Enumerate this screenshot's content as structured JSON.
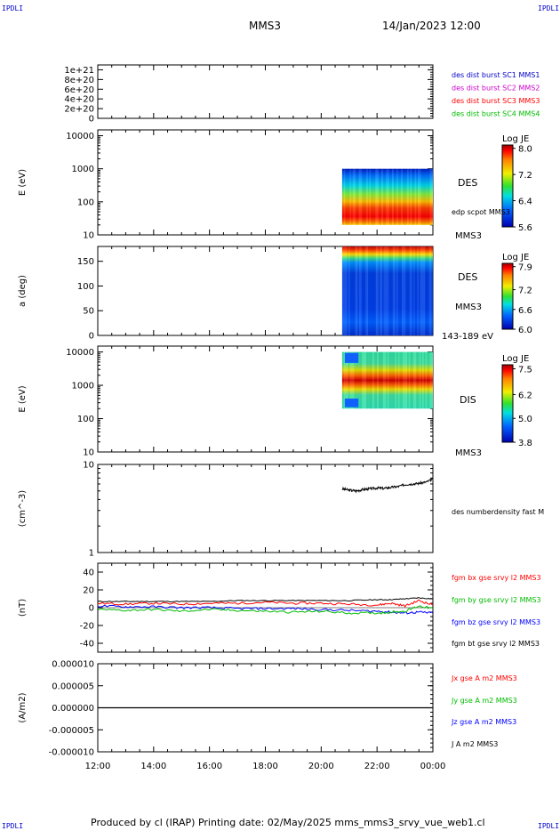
{
  "corners": {
    "tl": "IPDLI",
    "tr": "IPDLI",
    "bl": "IPDLI",
    "br": "IPDLI"
  },
  "header": {
    "spacecraft": "MMS3",
    "date": "14/Jan/2023 12:00"
  },
  "footer": {
    "text": "Produced by cl (IRAP)   Printing date: 02/May/2025   mms_mms3_srvy_vue_web1.cl"
  },
  "colors": {
    "mms1": "#0000cc",
    "mms2": "#cc00cc",
    "mms3": "#ff0000",
    "mms4": "#00bb00",
    "red": "#ff0000",
    "green": "#00bb00",
    "blue": "#0000ff",
    "black": "#000000"
  },
  "chart_data": [
    {
      "type": "line",
      "panel": "dist",
      "ylabel": "",
      "yticks": [
        "1e+21",
        "8e+20",
        "6e+20",
        "4e+20",
        "2e+20",
        "0"
      ],
      "ylim": [
        0,
        1.1e+21
      ],
      "xlim": [
        12,
        24
      ],
      "xticks": [
        "12:00",
        "14:00",
        "16:00",
        "18:00",
        "20:00",
        "22:00",
        "00:00"
      ],
      "series": [
        {
          "name": "des dist burst SC1 MMS1",
          "values": [
            0,
            0
          ]
        },
        {
          "name": "des dist burst SC2 MMS2",
          "values": [
            0,
            0
          ]
        },
        {
          "name": "des dist burst SC3 MMS3",
          "values": [
            0,
            0
          ]
        },
        {
          "name": "des dist burst SC4 MMS4",
          "values": [
            0,
            0
          ]
        }
      ]
    },
    {
      "type": "heatmap",
      "panel": "des_energy",
      "ylabel": "E (eV)",
      "yscale": "log",
      "ylim": [
        10,
        15000
      ],
      "yticks": [
        "10",
        "100",
        "1000",
        "10000"
      ],
      "data_x_range": [
        20.75,
        24
      ],
      "data_y_range": [
        20,
        1000
      ],
      "label": "DES",
      "overlay": "edp scpot MMS3",
      "sc_label": "MMS3",
      "colorbar": {
        "title": "Log JE",
        "ticks": [
          "8.0",
          "7.2",
          "6.4",
          "5.6"
        ],
        "range": [
          5.6,
          8.1
        ]
      }
    },
    {
      "type": "heatmap",
      "panel": "des_pitch",
      "ylabel": "a (deg)",
      "ylim": [
        0,
        180
      ],
      "yticks": [
        "0",
        "50",
        "100",
        "150"
      ],
      "data_x_range": [
        20.75,
        24
      ],
      "label": "DES",
      "sc_label": "MMS3",
      "energy_range": "143-189 eV",
      "colorbar": {
        "title": "Log JE",
        "ticks": [
          "7.9",
          "7.2",
          "6.6",
          "6.0"
        ],
        "range": [
          6.0,
          8.0
        ]
      }
    },
    {
      "type": "heatmap",
      "panel": "dis_energy",
      "ylabel": "E (eV)",
      "yscale": "log",
      "ylim": [
        10,
        15000
      ],
      "yticks": [
        "10",
        "100",
        "1000",
        "10000"
      ],
      "data_x_range": [
        20.75,
        24
      ],
      "data_y_range": [
        200,
        10000
      ],
      "label": "DIS",
      "sc_label": "MMS3",
      "colorbar": {
        "title": "Log JE",
        "ticks": [
          "7.5",
          "6.2",
          "5.0",
          "3.8"
        ],
        "range": [
          3.8,
          7.7
        ]
      }
    },
    {
      "type": "line",
      "panel": "density",
      "ylabel": "(cm^-3)",
      "yscale": "log",
      "ylim": [
        1,
        10
      ],
      "yticks": [
        "1",
        "10"
      ],
      "series": [
        {
          "name": "des numberdensity fast M",
          "x": [
            20.75,
            21.0,
            21.25,
            21.5,
            21.75,
            22.0,
            22.25,
            22.5,
            22.75,
            23.0,
            23.25,
            23.5,
            23.75,
            24.0
          ],
          "y": [
            5.3,
            5.1,
            5.0,
            5.2,
            5.3,
            5.4,
            5.35,
            5.5,
            5.6,
            5.9,
            6.0,
            6.1,
            6.3,
            6.8
          ]
        }
      ]
    },
    {
      "type": "line",
      "panel": "bfield",
      "ylabel": "(nT)",
      "ylim": [
        -50,
        50
      ],
      "yticks": [
        "40",
        "20",
        "0",
        "-20",
        "-40"
      ],
      "x": [
        12,
        13,
        14,
        15,
        16,
        17,
        18,
        19,
        20,
        21,
        22,
        22.5,
        23,
        23.5,
        24
      ],
      "series": [
        {
          "name": "fgm bx gse srvy l2 MMS3",
          "color": "red",
          "values": [
            5,
            4,
            5,
            4,
            5,
            5,
            6,
            5,
            5,
            4,
            3,
            5,
            2,
            8,
            3
          ]
        },
        {
          "name": "fgm by gse srvy l2 MMS3",
          "color": "green",
          "values": [
            -2,
            -3,
            -2,
            -4,
            -2,
            -3,
            -4,
            -5,
            -4,
            -6,
            -6,
            -5,
            -4,
            2,
            -1
          ]
        },
        {
          "name": "fgm bz gse srvy l2 MMS3",
          "color": "blue",
          "values": [
            2,
            1,
            1,
            0,
            0,
            -1,
            -1,
            -1,
            -2,
            -3,
            -4,
            -5,
            -6,
            -5,
            -6
          ]
        },
        {
          "name": "fgm bt gse srvy l2 MMS3",
          "color": "black",
          "values": [
            7,
            7,
            7,
            7,
            7,
            8,
            8,
            8,
            8,
            8,
            9,
            9,
            10,
            11,
            10
          ]
        }
      ]
    },
    {
      "type": "line",
      "panel": "current",
      "ylabel": "(A/m2)",
      "ylim": [
        -1e-05,
        1e-05
      ],
      "yticks": [
        "0.000010",
        "0.000005",
        "0.000000",
        "-0.000005",
        "-0.000010"
      ],
      "x": [
        12,
        24
      ],
      "series": [
        {
          "name": "Jx gse A m2 MMS3",
          "color": "red",
          "values": [
            0,
            0
          ]
        },
        {
          "name": "Jy gse A m2 MMS3",
          "color": "green",
          "values": [
            0,
            0
          ]
        },
        {
          "name": "Jz gse A m2 MMS3",
          "color": "blue",
          "values": [
            0,
            0
          ]
        },
        {
          "name": "J A m2 MMS3",
          "color": "black",
          "values": [
            0,
            0
          ]
        }
      ]
    }
  ]
}
